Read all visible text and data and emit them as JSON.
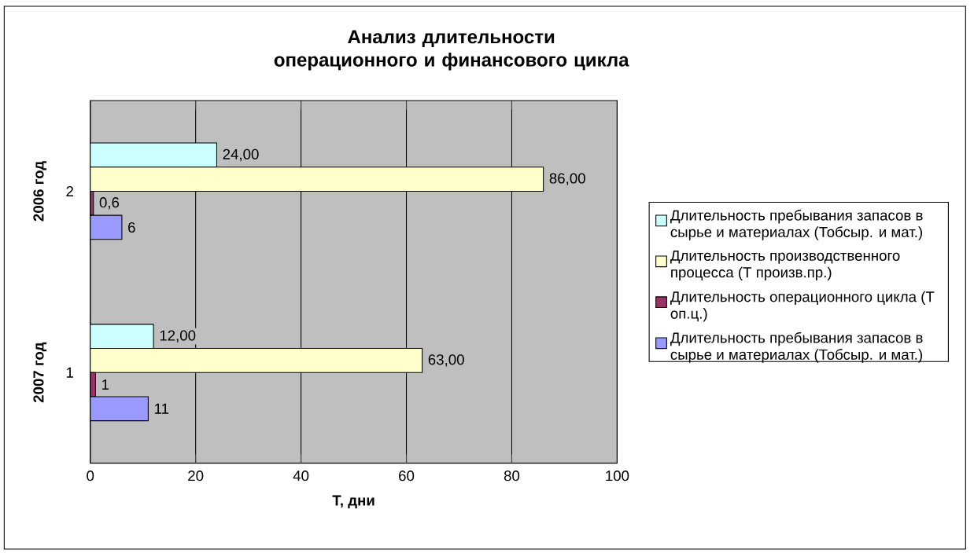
{
  "chart_data": {
    "type": "bar",
    "orientation": "horizontal",
    "title": "Анализ длительности операционного и финансового цикла",
    "xlabel": "Т, дни",
    "categories": [
      "2",
      "1"
    ],
    "annotations": [
      "2006 год",
      "2007 год"
    ],
    "series": [
      {
        "name": "Длительность пребывания запасов в сырье и материалах (Тобсыр. и мат.)",
        "color": "#ccffff",
        "values": [
          24,
          12
        ],
        "value_labels": [
          "24,00",
          "12,00"
        ]
      },
      {
        "name": "Длительность производственного процесса (Т произв.пр.)",
        "color": "#ffffcc",
        "values": [
          86,
          63
        ],
        "value_labels": [
          "86,00",
          "63,00"
        ]
      },
      {
        "name": "Длительность операционного цикла (Т оп.ц.)",
        "color": "#993366",
        "values": [
          0.6,
          1
        ],
        "value_labels": [
          "0,6",
          "1"
        ]
      },
      {
        "name": "Длительность пребывания запасов в сырье и материалах (Тобсыр. и мат.)",
        "color": "#9999ff",
        "values": [
          6,
          11
        ],
        "value_labels": [
          "6",
          "11"
        ]
      }
    ],
    "xlim": [
      0,
      100
    ],
    "xticks": [
      0,
      20,
      40,
      60,
      80,
      100
    ],
    "grid": "x",
    "legend": "right"
  }
}
